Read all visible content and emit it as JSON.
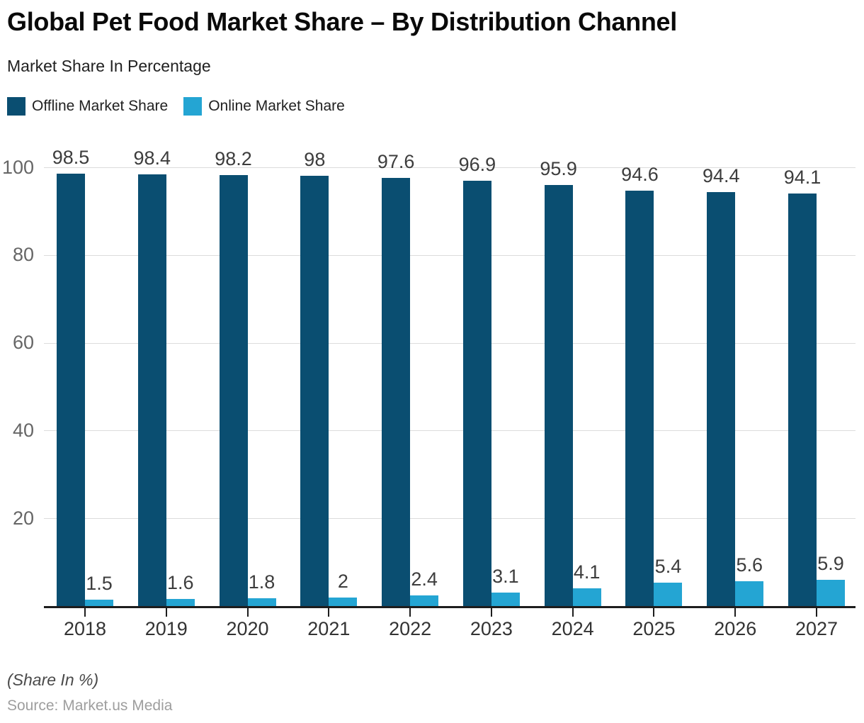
{
  "title": "Global Pet Food Market Share – By Distribution Channel",
  "subtitle": "Market Share In Percentage",
  "legend": {
    "offline_label": "Offline Market Share",
    "online_label": "Online Market Share"
  },
  "footer": {
    "note": "(Share In %)",
    "source": "Source: Market.us Media"
  },
  "colors": {
    "offline": "#0a4e71",
    "online": "#24a5d3",
    "grid": "#dcdcdc",
    "axis": "#1d1d1d",
    "y_label": "#666666",
    "x_label": "#333333",
    "value_label": "#3d3d3d"
  },
  "chart_data": {
    "type": "bar",
    "title": "Global Pet Food Market Share – By Distribution Channel",
    "subtitle": "Market Share In Percentage",
    "categories": [
      "2018",
      "2019",
      "2020",
      "2021",
      "2022",
      "2023",
      "2024",
      "2025",
      "2026",
      "2027"
    ],
    "series": [
      {
        "name": "Offline Market Share",
        "color": "#0a4e71",
        "values": [
          98.5,
          98.4,
          98.2,
          98,
          97.6,
          96.9,
          95.9,
          94.6,
          94.4,
          94.1
        ]
      },
      {
        "name": "Online Market Share",
        "color": "#24a5d3",
        "values": [
          1.5,
          1.6,
          1.8,
          2,
          2.4,
          3.1,
          4.1,
          5.4,
          5.6,
          5.9
        ]
      }
    ],
    "xlabel": "",
    "ylabel": "Market Share In Percentage",
    "ylim": [
      0,
      100
    ],
    "yticks": [
      20,
      40,
      60,
      80,
      100
    ],
    "grid": true,
    "legend_position": "top-left",
    "value_labels": true,
    "unit": "%"
  }
}
